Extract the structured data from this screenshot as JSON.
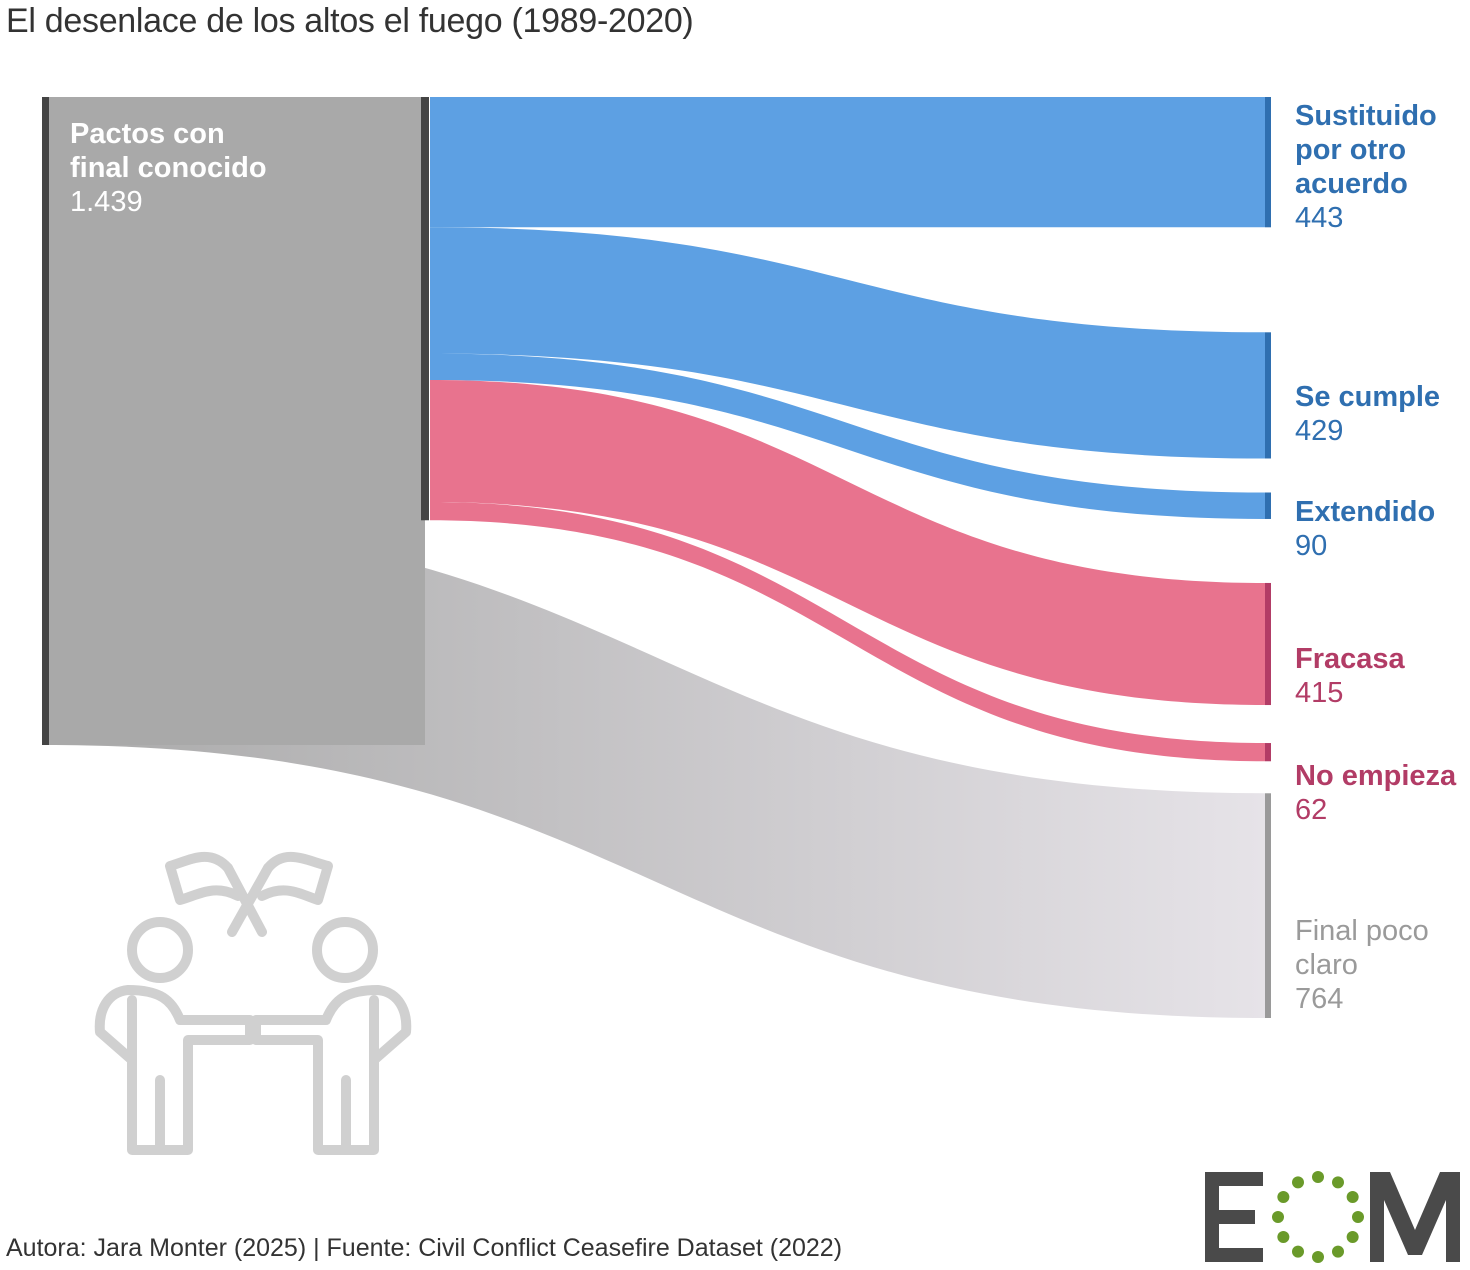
{
  "title": "El desenlace de los altos el fuego (1989-2020)",
  "credits": "Autora: Jara Monter (2025) | Fuente: Civil Conflict Ceasefire Dataset (2022)",
  "logo_text": "EOM",
  "colors": {
    "blue": "#5da0e3",
    "blue_text": "#2f6fb0",
    "pink": "#e8738e",
    "pink_text": "#b23c66",
    "gray_node": "#a9a9a9",
    "gray_text": "#9a9a9a",
    "dark_bar": "#444444",
    "logo_gray": "#4a4a4a",
    "logo_green": "#6a9a2a"
  },
  "chart_data": {
    "type": "sankey",
    "title": "El desenlace de los altos el fuego (1989-2020)",
    "source": {
      "name": "Pactos con final conocido",
      "value": "1.439"
    },
    "groups": [
      {
        "name": "",
        "color": "blue",
        "value": 962
      },
      {
        "name": "",
        "color": "pink",
        "value": 477
      },
      {
        "name": "",
        "color": "gray",
        "value": 764
      }
    ],
    "targets": [
      {
        "name": "Sustituido por otro acuerdo",
        "value": 443,
        "group": "blue"
      },
      {
        "name": "Se cumple",
        "value": 429,
        "group": "blue"
      },
      {
        "name": "Extendido",
        "value": 90,
        "group": "blue"
      },
      {
        "name": "Fracasa",
        "value": 415,
        "group": "pink"
      },
      {
        "name": "No empieza",
        "value": 62,
        "group": "pink"
      },
      {
        "name": "Final poco claro",
        "value": 764,
        "group": "gray"
      }
    ]
  }
}
